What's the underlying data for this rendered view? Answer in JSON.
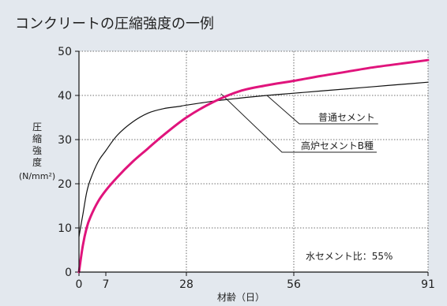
{
  "chart_data": {
    "type": "line",
    "title": "コンクリートの圧縮強度の一例",
    "xlabel": "材齢（日）",
    "ylabel_chars": [
      "圧",
      "縮",
      "強",
      "度"
    ],
    "ylabel_unit": "(N/mm²)",
    "xlim": [
      0,
      91
    ],
    "ylim": [
      0,
      50
    ],
    "x_ticks": [
      0,
      7,
      28,
      56,
      91
    ],
    "y_ticks": [
      0,
      10,
      20,
      30,
      40,
      50
    ],
    "grid": true,
    "series": [
      {
        "name": "普通セメント",
        "color": "#111111",
        "x": [
          0,
          1,
          2,
          3,
          5,
          7,
          10,
          14,
          18,
          22,
          26,
          28,
          35,
          42,
          49,
          56,
          63,
          70,
          77,
          84,
          91
        ],
        "y": [
          8,
          13,
          18,
          21,
          25,
          27.5,
          31,
          34,
          36,
          37,
          37.5,
          37.8,
          38.7,
          39.4,
          40,
          40.5,
          41,
          41.5,
          42,
          42.5,
          43
        ]
      },
      {
        "name": "高炉セメントB種",
        "color": "#e0147c",
        "x": [
          0,
          1,
          2,
          3,
          5,
          7,
          10,
          14,
          18,
          22,
          28,
          35,
          42,
          49,
          56,
          63,
          70,
          77,
          84,
          91
        ],
        "y": [
          0,
          6,
          10,
          12.5,
          16,
          18.5,
          21.5,
          25,
          28,
          31,
          35,
          38.5,
          41,
          42.3,
          43.3,
          44.4,
          45.4,
          46.4,
          47.2,
          48
        ]
      }
    ],
    "annotations": [
      {
        "text": "普通セメント",
        "target_series": 0,
        "x": 49,
        "y": 40
      },
      {
        "text": "高炉セメントB種",
        "target_series": 1,
        "x": 37,
        "y": 40.4
      },
      {
        "text": "水セメント比：55%"
      }
    ]
  }
}
